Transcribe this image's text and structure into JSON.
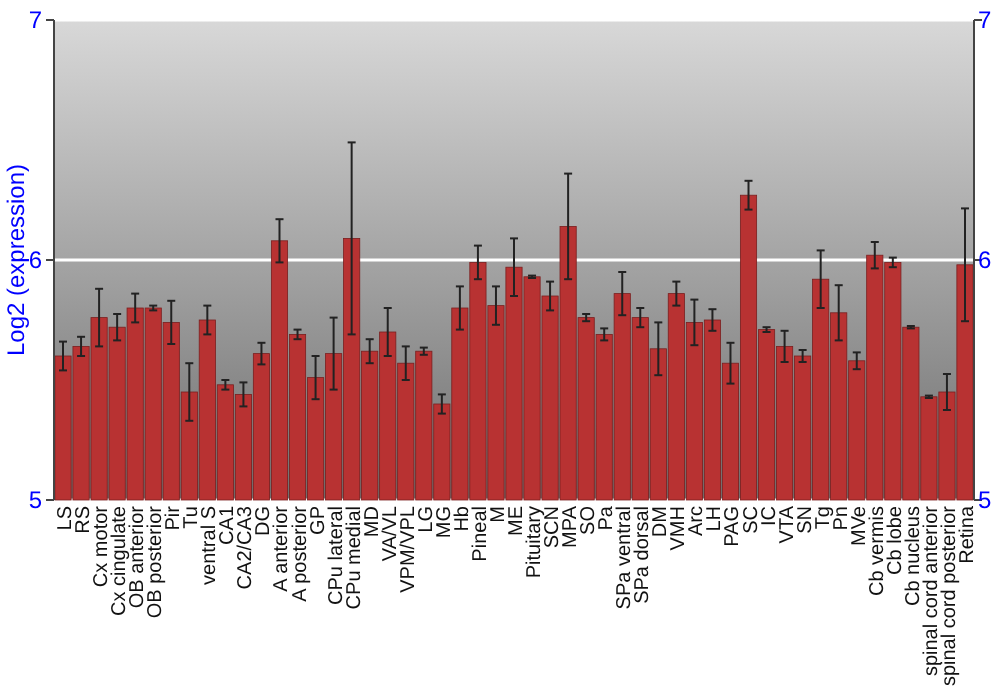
{
  "chart_data": {
    "type": "bar",
    "ylabel": "Log2 (expression)",
    "categories": [
      "LS",
      "RS",
      "Cx motor",
      "Cx cingulate",
      "OB anterior",
      "OB posterior",
      "Pir",
      "Tu",
      "ventral S",
      "CA1",
      "CA2/CA3",
      "DG",
      "A anterior",
      "A posterior",
      "GP",
      "CPu lateral",
      "CPu medial",
      "MD",
      "VA/VL",
      "VPM/VPL",
      "LG",
      "MG",
      "Hb",
      "Pineal",
      "M",
      "ME",
      "Pituitary",
      "SCN",
      "MPA",
      "SO",
      "Pa",
      "SPa ventral",
      "SPa dorsal",
      "DM",
      "VMH",
      "Arc",
      "LH",
      "PAG",
      "SC",
      "IC",
      "VTA",
      "SN",
      "Tg",
      "Pn",
      "MVe",
      "Cb vermis",
      "Cb lobe",
      "Cb nucleus",
      "spinal cord anterior",
      "spinal cord posterior",
      "Retina"
    ],
    "values": [
      5.6,
      5.64,
      5.76,
      5.72,
      5.8,
      5.8,
      5.74,
      5.45,
      5.75,
      5.48,
      5.44,
      5.61,
      6.08,
      5.69,
      5.51,
      5.61,
      6.09,
      5.62,
      5.7,
      5.57,
      5.62,
      5.4,
      5.8,
      5.99,
      5.81,
      5.97,
      5.93,
      5.85,
      6.14,
      5.76,
      5.69,
      5.86,
      5.76,
      5.63,
      5.86,
      5.74,
      5.75,
      5.57,
      6.27,
      5.71,
      5.64,
      5.6,
      5.92,
      5.78,
      5.58,
      6.02,
      5.99,
      5.72,
      5.43,
      5.45,
      5.98
    ],
    "errors": [
      0.06,
      0.04,
      0.12,
      0.055,
      0.06,
      0.01,
      0.09,
      0.12,
      0.06,
      0.02,
      0.05,
      0.045,
      0.09,
      0.02,
      0.09,
      0.15,
      0.4,
      0.05,
      0.1,
      0.07,
      0.015,
      0.04,
      0.09,
      0.07,
      0.08,
      0.12,
      0.005,
      0.06,
      0.22,
      0.015,
      0.025,
      0.09,
      0.04,
      0.11,
      0.05,
      0.095,
      0.045,
      0.085,
      0.06,
      0.01,
      0.065,
      0.025,
      0.12,
      0.115,
      0.035,
      0.055,
      0.02,
      0.005,
      0.005,
      0.075,
      0.235
    ],
    "color": "#b83232",
    "ylim": [
      5,
      7
    ],
    "yticks": [
      5,
      6,
      7
    ],
    "y2lim": [
      5,
      7
    ],
    "y2ticks": [
      5,
      6,
      7
    ],
    "grid": "y"
  }
}
